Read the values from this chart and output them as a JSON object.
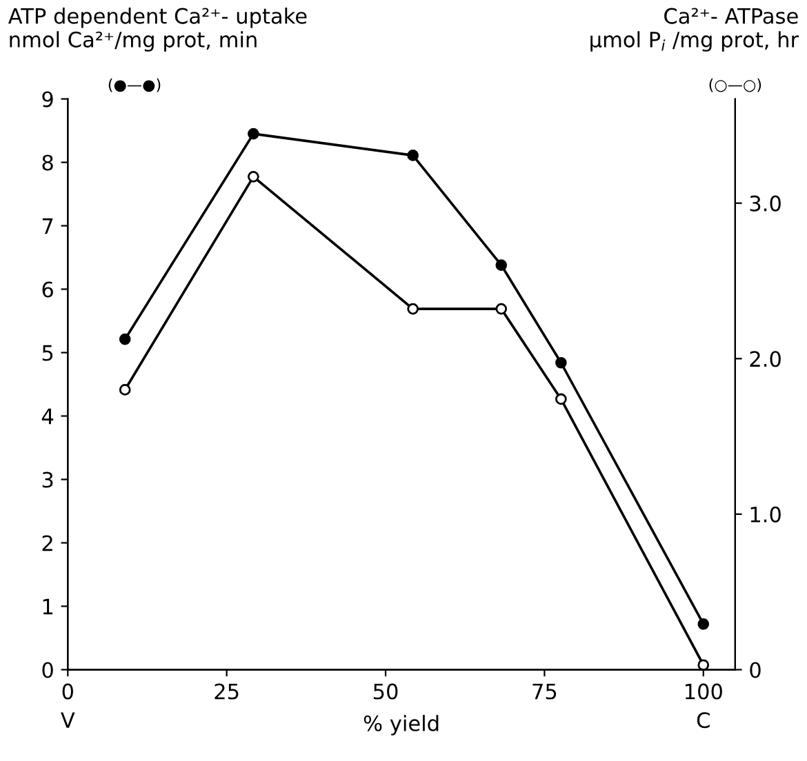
{
  "chart_data": {
    "type": "line",
    "ylabel": "ATP dependent Ca²⁺- uptake\nnmol Ca²⁺/mg prot, min",
    "y2label": "Ca²⁺- ATPase\nμmol P$_{i}$ /mg prot, hr",
    "xlabel": "% yield",
    "x": [
      9,
      29.2,
      54.3,
      68.2,
      77.6,
      100
    ],
    "series": [
      {
        "color": "#000000",
        "values": [
          5.21,
          8.45,
          8.11,
          6.38,
          4.84,
          0.72
        ]
      },
      {
        "color": "#000000",
        "axis": "y2",
        "values": [
          1.8,
          3.17,
          2.32,
          2.32,
          1.74,
          0.03
        ]
      }
    ],
    "xlim": [
      0,
      105
    ],
    "xticks": [
      0,
      25,
      50,
      75,
      100
    ],
    "ylim": [
      0,
      9
    ],
    "yticks": [
      0,
      1,
      2,
      3,
      4,
      5,
      6,
      7,
      8,
      9
    ],
    "y2lim": [
      0,
      3.67
    ],
    "y2ticks": [
      0,
      {
        "value": 1,
        "label": "1.0"
      },
      {
        "value": 2,
        "label": "2.0"
      },
      {
        "value": 3,
        "label": "3.0"
      }
    ],
    "marker": "circle",
    "line_style": "solid",
    "grid": false,
    "legend": false,
    "annotations": [
      "(●—●)",
      "(○—○)",
      "V",
      "C"
    ]
  }
}
